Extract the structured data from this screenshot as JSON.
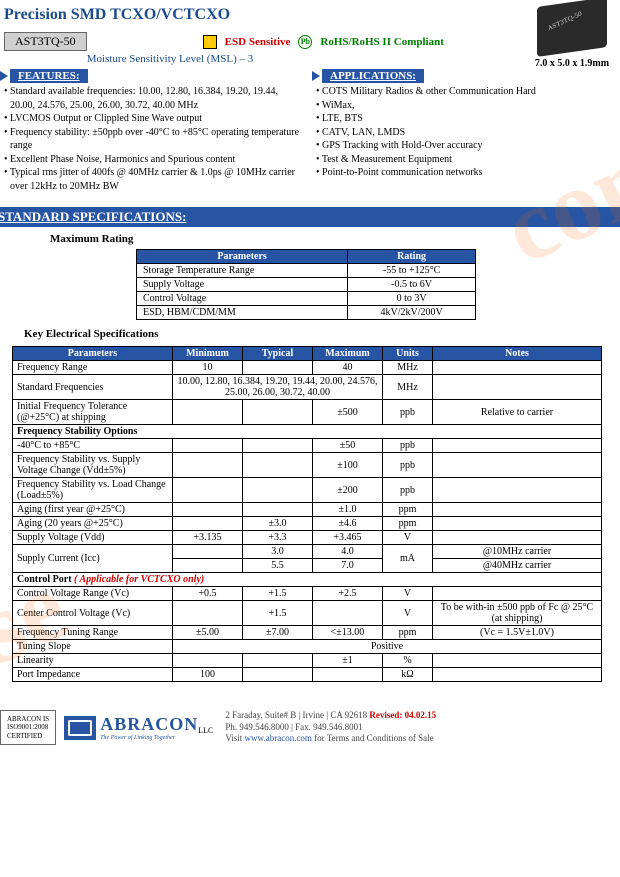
{
  "title": "Precision SMD TCXO/VCTCXO",
  "part": "AST3TQ-50",
  "esd": "ESD Sensitive",
  "rohs": "RoHS/RoHS II Compliant",
  "chip_label": "AST3TQ-50",
  "dims": "7.0 x 5.0 x 1.9mm",
  "msl": "Moisture Sensitivity Level (MSL) – 3",
  "features_hdr": "FEATURES:",
  "apps_hdr": "APPLICATIONS:",
  "features": [
    "Standard available frequencies: 10.00, 12.80, 16.384, 19.20, 19.44, 20.00, 24.576, 25.00, 26.00, 30.72,  40.00 MHz",
    "LVCMOS Output or Clippled Sine Wave output",
    "Frequency stability: ±50ppb over -40°C to +85°C operating temperature range",
    "Excellent Phase Noise, Harmonics and Spurious content",
    "Typical rms jitter of 400fs @ 40MHz carrier & 1.0ps @ 10MHz carrier over 12kHz to 20MHz BW"
  ],
  "apps": [
    "COTS Military Radios & other Communication Hard",
    "WiMax,",
    "LTE, BTS",
    "CATV, LAN, LMDS",
    "GPS Tracking with Hold-Over accuracy",
    "Test & Measurement Equipment",
    "Point-to-Point communication networks"
  ],
  "std_spec_hdr": "STANDARD SPECIFICATIONS:",
  "max_hdr": "Maximum Rating",
  "max_cols": [
    "Parameters",
    "Rating"
  ],
  "max_rows": [
    [
      "Storage Temperature Range",
      "-55 to +125°C"
    ],
    [
      "Supply Voltage",
      "-0.5 to 6V"
    ],
    [
      "Control Voltage",
      "0 to 3V"
    ],
    [
      "ESD, HBM/CDM/MM",
      "4kV/2kV/200V"
    ]
  ],
  "elec_hdr": "Key Electrical Specifications",
  "elec_cols": [
    "Parameters",
    "Minimum",
    "Typical",
    "Maximum",
    "Units",
    "Notes"
  ],
  "elec": {
    "freq_range": [
      "Frequency Range",
      "10",
      "",
      "40",
      "MHz",
      ""
    ],
    "std_freq_label": "Standard Frequencies",
    "std_freq_val": "10.00, 12.80, 16.384, 19.20, 19.44, 20.00, 24.576, 25.00, 26.00, 30.72,  40.00",
    "std_freq_unit": "MHz",
    "init_tol": [
      "Initial Frequency Tolerance (@+25°C) at shipping",
      "",
      "",
      "±500",
      "ppb",
      "Relative to carrier"
    ],
    "fso_hdr": "Frequency Stability Options",
    "r1": [
      "-40°C  to  +85°C",
      "",
      "",
      "±50",
      "ppb",
      ""
    ],
    "r2": [
      "Frequency Stability vs. Supply Voltage Change (Vdd±5%)",
      "",
      "",
      "±100",
      "ppb",
      ""
    ],
    "r3": [
      "Frequency Stability vs. Load Change (Load±5%)",
      "",
      "",
      "±200",
      "ppb",
      ""
    ],
    "r4": [
      "Aging (first year @+25°C)",
      "",
      "",
      "±1.0",
      "ppm",
      ""
    ],
    "r5": [
      "Aging (20 years @+25°C)",
      "",
      "±3.0",
      "±4.6",
      "ppm",
      ""
    ],
    "r6": [
      "Supply Voltage (Vdd)",
      "+3.135",
      "+3.3",
      "+3.465",
      "V",
      ""
    ],
    "supply_label": "Supply Current (Icc)",
    "sc1": [
      "",
      "3.0",
      "4.0",
      "",
      "@10MHz carrier"
    ],
    "sc2": [
      "",
      "5.5",
      "7.0",
      "",
      "@40MHz carrier"
    ],
    "sc_unit": "mA",
    "ctrl_hdr": "Control Port",
    "ctrl_note": "( Applicable for VCTCXO only)",
    "c1": [
      "Control Voltage Range (Vc)",
      "+0.5",
      "+1.5",
      "+2.5",
      "V",
      ""
    ],
    "c2": [
      "Center Control Voltage (Vc)",
      "",
      "+1.5",
      "",
      "V",
      "To be with-in ±500 ppb of Fc @ 25°C (at shipping)"
    ],
    "c3": [
      "Frequency Tuning Range",
      "±5.00",
      "±7.00",
      "<±13.00",
      "ppm",
      "(Vc = 1.5V±1.0V)"
    ],
    "c4_label": "Tuning Slope",
    "c4_val": "Positive",
    "c5": [
      "Linearity",
      "",
      "",
      "±1",
      "%",
      ""
    ],
    "c6": [
      "Port Impedance",
      "100",
      "",
      "",
      "kΩ",
      ""
    ]
  },
  "footer": {
    "cert": "ABRACON IS\nISO9001:2008\nCERTIFIED",
    "logo": "ABRACON",
    "logo_llc": "LLC",
    "tagline": "The Power of Linking Together",
    "addr": "2 Faraday, Suite# B | Irvine | CA 92618",
    "rev": "Revised: 04.02.15",
    "ph": "Ph. 949.546.8000 | Fax. 949.546.8001",
    "visit": "Visit",
    "url": "www.abracon.com",
    "terms": "for Terms and Conditions of Sale"
  },
  "colors": {
    "blue": "#2855a3",
    "title_blue": "#1a4b8c",
    "red": "#cc0000",
    "green": "#008000",
    "wm": "rgba(255,102,0,0.15)"
  }
}
